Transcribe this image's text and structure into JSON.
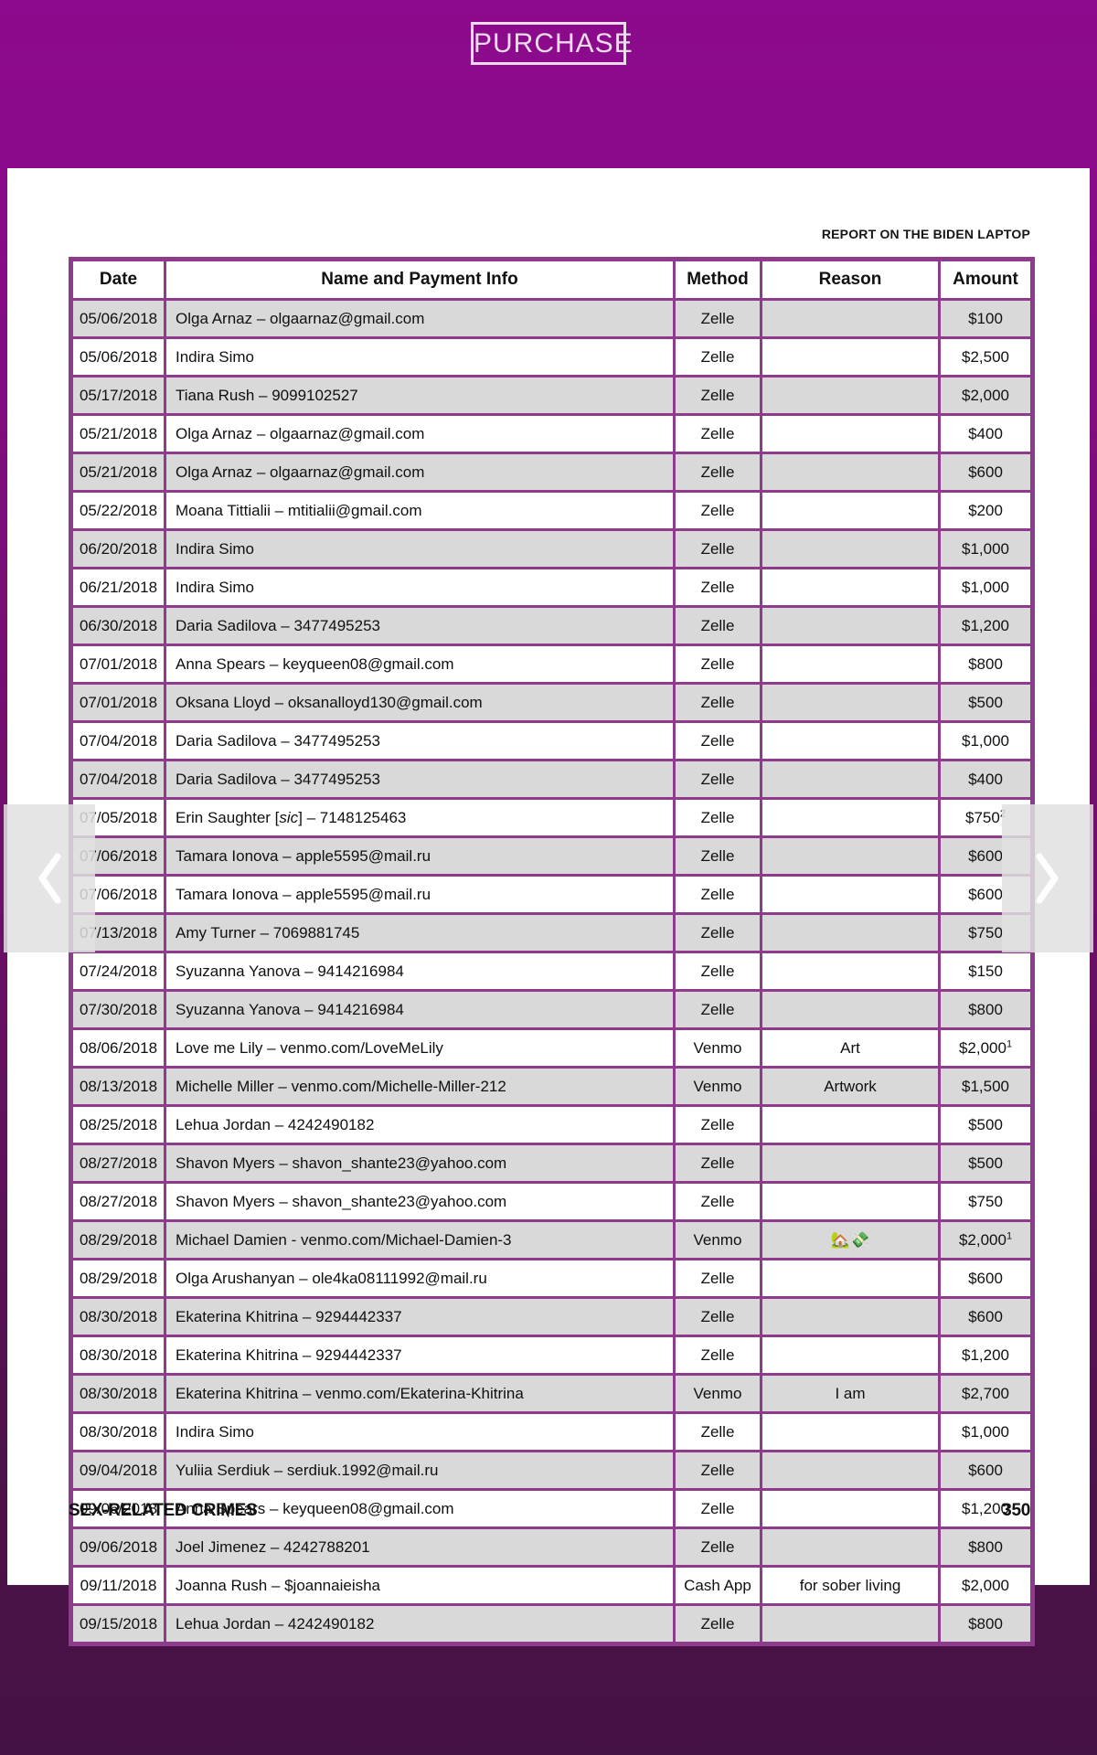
{
  "header": {
    "purchase_label": "PURCHASE",
    "report_title": "REPORT ON THE BIDEN LAPTOP"
  },
  "table": {
    "columns": [
      "Date",
      "Name and Payment Info",
      "Method",
      "Reason",
      "Amount"
    ],
    "rows": [
      {
        "date": "05/06/2018",
        "name": "Olga Arnaz – olgaarnaz@gmail.com",
        "method": "Zelle",
        "reason": "",
        "amount": "$100",
        "amount_sup": ""
      },
      {
        "date": "05/06/2018",
        "name": "Indira Simo",
        "method": "Zelle",
        "reason": "",
        "amount": "$2,500",
        "amount_sup": ""
      },
      {
        "date": "05/17/2018",
        "name": "Tiana Rush – 9099102527",
        "method": "Zelle",
        "reason": "",
        "amount": "$2,000",
        "amount_sup": ""
      },
      {
        "date": "05/21/2018",
        "name": "Olga Arnaz – olgaarnaz@gmail.com",
        "method": "Zelle",
        "reason": "",
        "amount": "$400",
        "amount_sup": ""
      },
      {
        "date": "05/21/2018",
        "name": "Olga Arnaz – olgaarnaz@gmail.com",
        "method": "Zelle",
        "reason": "",
        "amount": "$600",
        "amount_sup": ""
      },
      {
        "date": "05/22/2018",
        "name": "Moana Tittialii – mtitialii@gmail.com",
        "method": "Zelle",
        "reason": "",
        "amount": "$200",
        "amount_sup": ""
      },
      {
        "date": "06/20/2018",
        "name": "Indira Simo",
        "method": "Zelle",
        "reason": "",
        "amount": "$1,000",
        "amount_sup": ""
      },
      {
        "date": "06/21/2018",
        "name": "Indira Simo",
        "method": "Zelle",
        "reason": "",
        "amount": "$1,000",
        "amount_sup": ""
      },
      {
        "date": "06/30/2018",
        "name": "Daria Sadilova – 3477495253",
        "method": "Zelle",
        "reason": "",
        "amount": "$1,200",
        "amount_sup": ""
      },
      {
        "date": "07/01/2018",
        "name": "Anna Spears – keyqueen08@gmail.com",
        "method": "Zelle",
        "reason": "",
        "amount": "$800",
        "amount_sup": ""
      },
      {
        "date": "07/01/2018",
        "name": "Oksana Lloyd – oksanalloyd130@gmail.com",
        "method": "Zelle",
        "reason": "",
        "amount": "$500",
        "amount_sup": ""
      },
      {
        "date": "07/04/2018",
        "name": "Daria Sadilova – 3477495253",
        "method": "Zelle",
        "reason": "",
        "amount": "$1,000",
        "amount_sup": ""
      },
      {
        "date": "07/04/2018",
        "name": "Daria Sadilova – 3477495253",
        "method": "Zelle",
        "reason": "",
        "amount": "$400",
        "amount_sup": ""
      },
      {
        "date": "07/05/2018",
        "name": "Erin Saughter [sic] – 7148125463",
        "method": "Zelle",
        "reason": "",
        "amount": "$750",
        "amount_sup": "2"
      },
      {
        "date": "07/06/2018",
        "name": "Tamara Ionova – apple5595@mail.ru",
        "method": "Zelle",
        "reason": "",
        "amount": "$600",
        "amount_sup": ""
      },
      {
        "date": "07/06/2018",
        "name": "Tamara Ionova – apple5595@mail.ru",
        "method": "Zelle",
        "reason": "",
        "amount": "$600",
        "amount_sup": ""
      },
      {
        "date": "07/13/2018",
        "name": "Amy Turner – 7069881745",
        "method": "Zelle",
        "reason": "",
        "amount": "$750",
        "amount_sup": ""
      },
      {
        "date": "07/24/2018",
        "name": "Syuzanna Yanova – 9414216984",
        "method": "Zelle",
        "reason": "",
        "amount": "$150",
        "amount_sup": ""
      },
      {
        "date": "07/30/2018",
        "name": "Syuzanna Yanova – 9414216984",
        "method": "Zelle",
        "reason": "",
        "amount": "$800",
        "amount_sup": ""
      },
      {
        "date": "08/06/2018",
        "name": "Love me Lily – venmo.com/LoveMeLily",
        "method": "Venmo",
        "reason": "Art",
        "amount": "$2,000",
        "amount_sup": "1"
      },
      {
        "date": "08/13/2018",
        "name": "Michelle Miller – venmo.com/Michelle-Miller-212",
        "method": "Venmo",
        "reason": "Artwork",
        "amount": "$1,500",
        "amount_sup": ""
      },
      {
        "date": "08/25/2018",
        "name": "Lehua Jordan – 4242490182",
        "method": "Zelle",
        "reason": "",
        "amount": "$500",
        "amount_sup": ""
      },
      {
        "date": "08/27/2018",
        "name": "Shavon Myers – shavon_shante23@yahoo.com",
        "method": "Zelle",
        "reason": "",
        "amount": "$500",
        "amount_sup": ""
      },
      {
        "date": "08/27/2018",
        "name": "Shavon Myers – shavon_shante23@yahoo.com",
        "method": "Zelle",
        "reason": "",
        "amount": "$750",
        "amount_sup": ""
      },
      {
        "date": "08/29/2018",
        "name": "Michael Damien - venmo.com/Michael-Damien-3",
        "method": "Venmo",
        "reason": "🏡💸",
        "amount": "$2,000",
        "amount_sup": "1"
      },
      {
        "date": "08/29/2018",
        "name": "Olga Arushanyan – ole4ka08111992@mail.ru",
        "method": "Zelle",
        "reason": "",
        "amount": "$600",
        "amount_sup": ""
      },
      {
        "date": "08/30/2018",
        "name": "Ekaterina Khitrina – 9294442337",
        "method": "Zelle",
        "reason": "",
        "amount": "$600",
        "amount_sup": ""
      },
      {
        "date": "08/30/2018",
        "name": "Ekaterina Khitrina – 9294442337",
        "method": "Zelle",
        "reason": "",
        "amount": "$1,200",
        "amount_sup": ""
      },
      {
        "date": "08/30/2018",
        "name": "Ekaterina Khitrina – venmo.com/Ekaterina-Khitrina",
        "method": "Venmo",
        "reason": "I am",
        "amount": "$2,700",
        "amount_sup": ""
      },
      {
        "date": "08/30/2018",
        "name": "Indira Simo",
        "method": "Zelle",
        "reason": "",
        "amount": "$1,000",
        "amount_sup": ""
      },
      {
        "date": "09/04/2018",
        "name": "Yuliia Serdiuk – serdiuk.1992@mail.ru",
        "method": "Zelle",
        "reason": "",
        "amount": "$600",
        "amount_sup": ""
      },
      {
        "date": "09/06/2018",
        "name": "Anna Spears – keyqueen08@gmail.com",
        "method": "Zelle",
        "reason": "",
        "amount": "$1,200",
        "amount_sup": ""
      },
      {
        "date": "09/06/2018",
        "name": "Joel Jimenez – 4242788201",
        "method": "Zelle",
        "reason": "",
        "amount": "$800",
        "amount_sup": ""
      },
      {
        "date": "09/11/2018",
        "name": "Joanna Rush – $joannaieisha",
        "method": "Cash App",
        "reason": "for sober living",
        "amount": "$2,000",
        "amount_sup": ""
      },
      {
        "date": "09/15/2018",
        "name": "Lehua Jordan – 4242490182",
        "method": "Zelle",
        "reason": "",
        "amount": "$800",
        "amount_sup": ""
      }
    ]
  },
  "footer": {
    "chapter_title": "SEX-RELATED CRIMES",
    "page_number": "350"
  },
  "colors": {
    "bg_top_purple": "#8D098D",
    "bg_bottom_plum": "#451244",
    "table_border_purple": "#8E3B8E",
    "row_shade_gray": "#D9D9D9",
    "purchase_text": "#EEDBEE"
  }
}
